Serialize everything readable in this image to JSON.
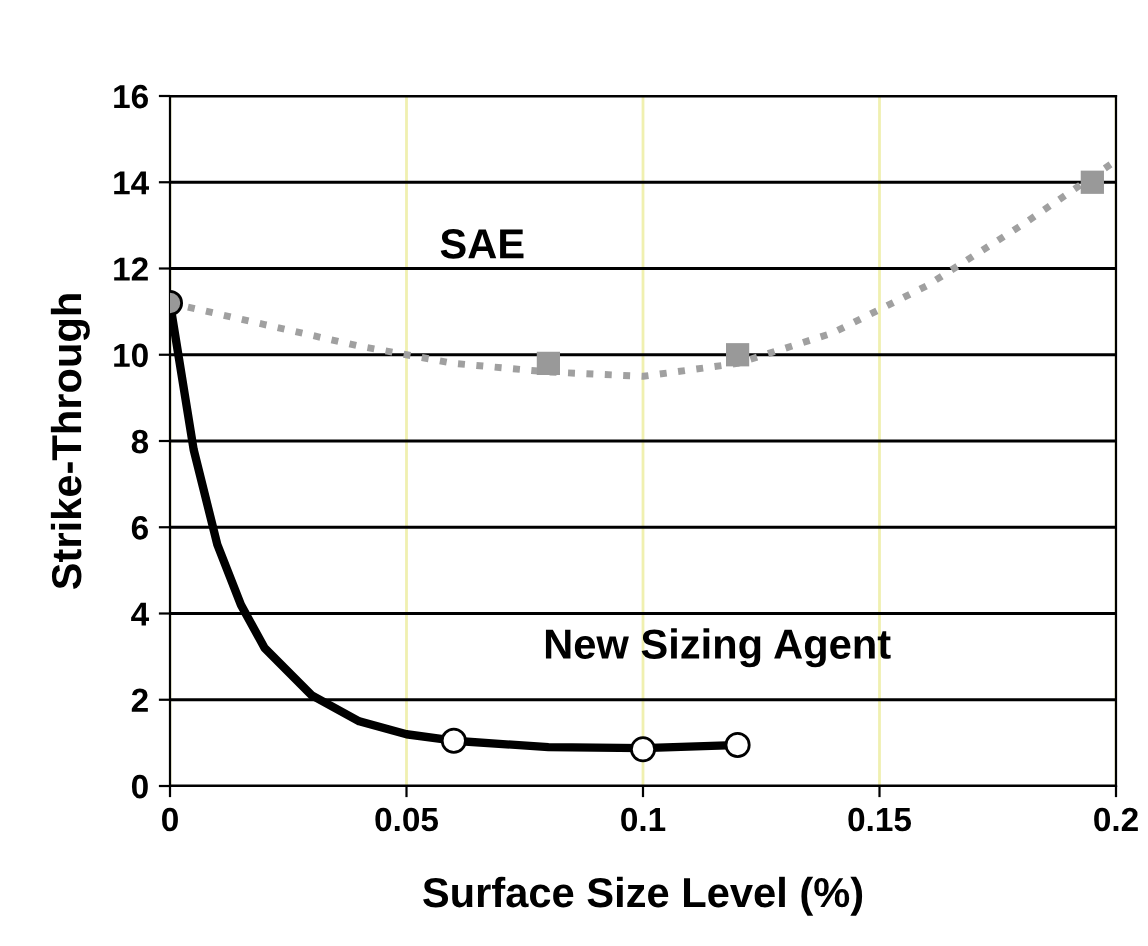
{
  "chart_data": {
    "type": "line",
    "xlabel": "Surface Size Level (%)",
    "ylabel": "Strike-Through",
    "xlim": [
      0,
      0.2
    ],
    "xticks": [
      {
        "value": 0,
        "label": "0"
      },
      0.05,
      0.1,
      0.15,
      0.2
    ],
    "ylim": [
      0,
      16
    ],
    "yticks": [
      0,
      2,
      4,
      6,
      8,
      10,
      12,
      14,
      16
    ],
    "grid": true,
    "legend": false,
    "series": [
      {
        "name": "SAE",
        "color": "#a0a0a0",
        "line_style": "dotted",
        "marker": "none",
        "x": [
          0,
          0.02,
          0.04,
          0.06,
          0.08,
          0.1,
          0.12,
          0.14,
          0.16,
          0.18,
          0.2
        ],
        "values": [
          11.2,
          10.7,
          10.2,
          9.8,
          9.6,
          9.5,
          9.8,
          10.5,
          11.6,
          13,
          14.5
        ]
      },
      {
        "type": "scatter",
        "color": "#999999",
        "marker": "square",
        "x": [
          0.08,
          0.12,
          0.195
        ],
        "values": [
          9.8,
          10,
          14
        ]
      },
      {
        "name": "New Sizing Agent",
        "color": "#000000",
        "line_style": "solid",
        "marker": "none",
        "x": [
          0,
          0.005,
          0.01,
          0.015,
          0.02,
          0.03,
          0.04,
          0.05,
          0.06,
          0.08,
          0.1,
          0.12
        ],
        "values": [
          11.2,
          7.8,
          5.6,
          4.2,
          3.2,
          2.1,
          1.5,
          1.2,
          1.05,
          0.9,
          0.88,
          0.95
        ]
      },
      {
        "type": "scatter",
        "color": "#000000",
        "colors": [
          "#999999",
          "#ffffff",
          "#ffffff",
          "#ffffff"
        ],
        "marker": "circle",
        "x": [
          0,
          0.06,
          0.1,
          0.12
        ],
        "values": [
          11.2,
          1.05,
          0.85,
          0.95
        ]
      }
    ]
  }
}
